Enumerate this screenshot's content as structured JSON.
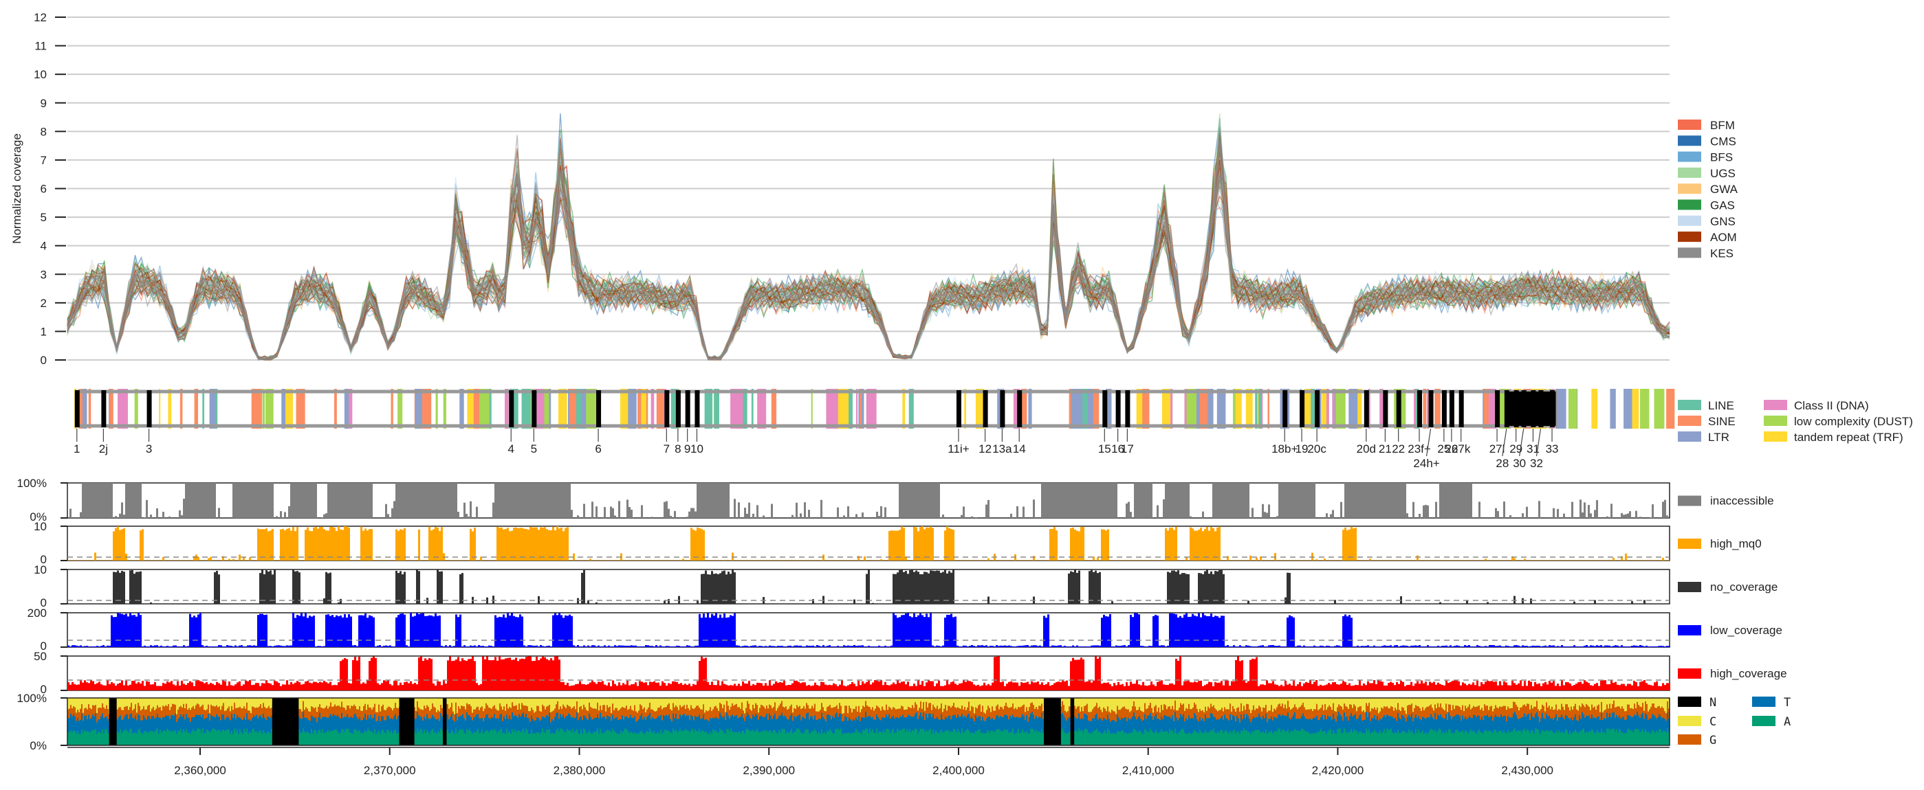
{
  "chart_data": [
    {
      "type": "line",
      "panel": "normalized-coverage",
      "ylabel": "Normalized coverage",
      "ylim": [
        0,
        12
      ],
      "yticks": [
        "0",
        "1",
        "2",
        "3",
        "4",
        "5",
        "6",
        "7",
        "8",
        "9",
        "10",
        "11",
        "12"
      ],
      "grid": true,
      "legend_position": "right",
      "series": [
        {
          "name": "BFM",
          "color": "#f46d4e"
        },
        {
          "name": "CMS",
          "color": "#2c6fb0"
        },
        {
          "name": "BFS",
          "color": "#6aaad6"
        },
        {
          "name": "UGS",
          "color": "#a6d9a0"
        },
        {
          "name": "GWA",
          "color": "#fdc77a"
        },
        {
          "name": "GAS",
          "color": "#2e9a48"
        },
        {
          "name": "GNS",
          "color": "#c6dbef"
        },
        {
          "name": "AOM",
          "color": "#a63603"
        },
        {
          "name": "KES",
          "color": "#8c8c8c"
        }
      ],
      "profile_x": [
        2353000,
        2354000,
        2355000,
        2355500,
        2356500,
        2358000,
        2359000,
        2360000,
        2361000,
        2362000,
        2363000,
        2363500,
        2364000,
        2365000,
        2366000,
        2367000,
        2368000,
        2369000,
        2370000,
        2370700,
        2371000,
        2372000,
        2373000,
        2373500,
        2374500,
        2375500,
        2376000,
        2376600,
        2377200,
        2377800,
        2378400,
        2379000,
        2380000,
        2381000,
        2383000,
        2385000,
        2386000,
        2386700,
        2387500,
        2389000,
        2391000,
        2393000,
        2395000,
        2396000,
        2396500,
        2397500,
        2398500,
        2399500,
        2401000,
        2403000,
        2404000,
        2404600,
        2405000,
        2405600,
        2406200,
        2407000,
        2408000,
        2409000,
        2410200,
        2410800,
        2411600,
        2412000,
        2413000,
        2413800,
        2414500,
        2415000,
        2416000,
        2418000,
        2420000,
        2421000,
        2423000,
        2425000,
        2428000,
        2430000,
        2432000,
        2434000,
        2436000,
        2437000
      ],
      "profile_y": [
        1.2,
        2.6,
        2.8,
        0.1,
        2.9,
        2.5,
        0.6,
        2.6,
        2.5,
        2.4,
        0.0,
        0.0,
        0.0,
        2.2,
        2.6,
        2.2,
        0.3,
        2.4,
        0.3,
        2.0,
        2.5,
        2.2,
        1.6,
        5.2,
        2.2,
        2.8,
        1.8,
        6.8,
        3.4,
        5.5,
        3.0,
        6.6,
        2.8,
        2.3,
        2.4,
        2.1,
        2.3,
        0.0,
        0.0,
        2.3,
        2.2,
        2.5,
        2.4,
        1.2,
        0.1,
        0.0,
        2.0,
        2.3,
        2.2,
        2.6,
        2.4,
        0.1,
        5.4,
        1.2,
        3.4,
        2.3,
        2.5,
        0.0,
        3.0,
        5.2,
        2.1,
        0.4,
        2.8,
        7.2,
        2.3,
        2.5,
        2.2,
        2.4,
        0.2,
        1.9,
        2.3,
        2.4,
        2.3,
        2.5,
        2.4,
        2.3,
        2.5,
        1.0
      ]
    },
    {
      "type": "table",
      "panel": "repeat-annotations",
      "legend_position": "right",
      "classes": [
        {
          "name": "LINE",
          "color": "#66c2a5"
        },
        {
          "name": "SINE",
          "color": "#fc8d62"
        },
        {
          "name": "LTR",
          "color": "#8da0cb"
        },
        {
          "name": "Class II (DNA)",
          "color": "#e78ac3"
        },
        {
          "name": "low complexity (DUST)",
          "color": "#a6d854"
        },
        {
          "name": "tandem repeat (TRF)",
          "color": "#ffd92f"
        }
      ],
      "exon_labels": [
        {
          "label": "1",
          "x": 2353500
        },
        {
          "label": "2j",
          "x": 2354900
        },
        {
          "label": "3",
          "x": 2357300
        },
        {
          "label": "4",
          "x": 2376400
        },
        {
          "label": "5",
          "x": 2377600
        },
        {
          "label": "6",
          "x": 2381000
        },
        {
          "label": "7",
          "x": 2384600
        },
        {
          "label": "8",
          "x": 2385200
        },
        {
          "label": "9",
          "x": 2385700
        },
        {
          "label": "10",
          "x": 2386200
        },
        {
          "label": "11i+",
          "x": 2400000
        },
        {
          "label": "12",
          "x": 2401400
        },
        {
          "label": "13a",
          "x": 2402300
        },
        {
          "label": "14",
          "x": 2403200
        },
        {
          "label": "15",
          "x": 2407700
        },
        {
          "label": "16",
          "x": 2408400
        },
        {
          "label": "17",
          "x": 2408900
        },
        {
          "label": "18b+",
          "x": 2417200
        },
        {
          "label": "19",
          "x": 2418100
        },
        {
          "label": "20c",
          "x": 2418900
        },
        {
          "label": "20d",
          "x": 2421500
        },
        {
          "label": "21",
          "x": 2422500
        },
        {
          "label": "22",
          "x": 2423200
        },
        {
          "label": "23f+",
          "x": 2424300
        },
        {
          "label": "24h+",
          "x": 2424900
        },
        {
          "label": "25",
          "x": 2425600
        },
        {
          "label": "26",
          "x": 2426000
        },
        {
          "label": "27k",
          "x": 2426500
        },
        {
          "label": "27l",
          "x": 2428400
        },
        {
          "label": "28",
          "x": 2428900
        },
        {
          "label": "29",
          "x": 2429400
        },
        {
          "label": "30",
          "x": 2429800
        },
        {
          "label": "31",
          "x": 2430300
        },
        {
          "label": "32",
          "x": 2430700
        },
        {
          "label": "33",
          "x": 2431300
        }
      ]
    },
    {
      "type": "area",
      "panel": "inaccessible",
      "series": [
        {
          "name": "inaccessible",
          "color": "#808080"
        }
      ],
      "ylim": [
        0,
        100
      ],
      "yticks": [
        "0%",
        "100%"
      ],
      "regions": [
        [
          2353700,
          2355300
        ],
        [
          2356000,
          2356900
        ],
        [
          2359200,
          2360800
        ],
        [
          2361700,
          2363800
        ],
        [
          2364700,
          2366100
        ],
        [
          2366600,
          2369100
        ],
        [
          2370200,
          2373500
        ],
        [
          2375500,
          2379500
        ],
        [
          2386100,
          2387900
        ],
        [
          2396800,
          2399000
        ],
        [
          2404300,
          2408300
        ],
        [
          2409200,
          2410200
        ],
        [
          2410800,
          2412100
        ],
        [
          2413300,
          2415300
        ],
        [
          2416800,
          2418800
        ],
        [
          2420300,
          2423600
        ],
        [
          2425300,
          2427000
        ]
      ]
    },
    {
      "type": "area",
      "panel": "high_mq0",
      "series": [
        {
          "name": "high_mq0",
          "color": "#ffa500"
        }
      ],
      "ylim": [
        0,
        10
      ],
      "yticks": [
        "0",
        "10"
      ],
      "threshold": 1,
      "regions": [
        [
          2355300,
          2356000
        ],
        [
          2356800,
          2357000
        ],
        [
          2363000,
          2363800
        ],
        [
          2364200,
          2365100
        ],
        [
          2365500,
          2367800
        ],
        [
          2368400,
          2369100
        ],
        [
          2370200,
          2370800
        ],
        [
          2371400,
          2371600
        ],
        [
          2372000,
          2372800
        ],
        [
          2374200,
          2374500
        ],
        [
          2375600,
          2379400
        ],
        [
          2385800,
          2386600
        ],
        [
          2396300,
          2397100
        ],
        [
          2397500,
          2398600
        ],
        [
          2399200,
          2399700
        ],
        [
          2404700,
          2405200
        ],
        [
          2405800,
          2406600
        ],
        [
          2407400,
          2407900
        ],
        [
          2410800,
          2411500
        ],
        [
          2412100,
          2413800
        ],
        [
          2420200,
          2420900
        ]
      ]
    },
    {
      "type": "area",
      "panel": "no_coverage",
      "series": [
        {
          "name": "no_coverage",
          "color": "#333333"
        }
      ],
      "ylim": [
        0,
        10
      ],
      "yticks": [
        "0",
        "10"
      ],
      "threshold": 1,
      "regions": [
        [
          2355300,
          2356000
        ],
        [
          2356200,
          2356900
        ],
        [
          2360700,
          2361000
        ],
        [
          2363100,
          2363900
        ],
        [
          2364800,
          2365200
        ],
        [
          2366500,
          2366900
        ],
        [
          2370200,
          2370800
        ],
        [
          2371300,
          2371500
        ],
        [
          2372400,
          2372700
        ],
        [
          2373600,
          2373800
        ],
        [
          2380000,
          2380300
        ],
        [
          2386300,
          2388200
        ],
        [
          2395000,
          2395300
        ],
        [
          2396500,
          2399700
        ],
        [
          2405700,
          2406400
        ],
        [
          2406800,
          2407400
        ],
        [
          2410900,
          2412100
        ],
        [
          2412600,
          2414000
        ],
        [
          2417200,
          2417500
        ]
      ]
    },
    {
      "type": "area",
      "panel": "low_coverage",
      "series": [
        {
          "name": "low_coverage",
          "color": "#0000ff"
        }
      ],
      "ylim": [
        0,
        200
      ],
      "yticks": [
        "0",
        "200"
      ],
      "threshold": 40,
      "regions": [
        [
          2355200,
          2356900
        ],
        [
          2359400,
          2360000
        ],
        [
          2363000,
          2363500
        ],
        [
          2364800,
          2366000
        ],
        [
          2366500,
          2368000
        ],
        [
          2368300,
          2369200
        ],
        [
          2370200,
          2370800
        ],
        [
          2371000,
          2372600
        ],
        [
          2373400,
          2373700
        ],
        [
          2375500,
          2377000
        ],
        [
          2378500,
          2379600
        ],
        [
          2386200,
          2388200
        ],
        [
          2396500,
          2398500
        ],
        [
          2399200,
          2399800
        ],
        [
          2404400,
          2404700
        ],
        [
          2407500,
          2408000
        ],
        [
          2409000,
          2409500
        ],
        [
          2410200,
          2410500
        ],
        [
          2411000,
          2414000
        ],
        [
          2417200,
          2417700
        ],
        [
          2420200,
          2420700
        ]
      ]
    },
    {
      "type": "area",
      "panel": "high_coverage",
      "series": [
        {
          "name": "high_coverage",
          "color": "#ff0000"
        }
      ],
      "ylim": [
        0,
        50
      ],
      "yticks": [
        "0",
        "50"
      ],
      "threshold": 15,
      "regions": [
        [
          2367300,
          2367700
        ],
        [
          2368000,
          2368400
        ],
        [
          2368800,
          2369300
        ],
        [
          2371400,
          2372200
        ],
        [
          2373000,
          2374500
        ],
        [
          2374800,
          2379000
        ],
        [
          2386200,
          2386700
        ],
        [
          2401800,
          2402100
        ],
        [
          2405800,
          2406600
        ],
        [
          2407100,
          2407400
        ],
        [
          2411400,
          2411700
        ],
        [
          2414500,
          2415000
        ],
        [
          2415300,
          2415700
        ]
      ]
    },
    {
      "type": "area",
      "panel": "base-composition",
      "ylim": [
        0,
        100
      ],
      "yticks": [
        "0%",
        "100%"
      ],
      "series": [
        {
          "name": "N",
          "color": "#000000"
        },
        {
          "name": "C",
          "color": "#f0e442"
        },
        {
          "name": "G",
          "color": "#d55e00"
        },
        {
          "name": "T",
          "color": "#0072b2"
        },
        {
          "name": "A",
          "color": "#009e73"
        }
      ],
      "n_regions": [
        [
          2355200,
          2355600
        ],
        [
          2363800,
          2365200
        ],
        [
          2370500,
          2371300
        ],
        [
          2372800,
          2373000
        ],
        [
          2404500,
          2405400
        ],
        [
          2405900,
          2406100
        ]
      ]
    }
  ],
  "xaxis": {
    "xlim": [
      2353000,
      2437500
    ],
    "ticks": [
      {
        "value": 2360000,
        "label": "2,360,000"
      },
      {
        "value": 2370000,
        "label": "2,370,000"
      },
      {
        "value": 2380000,
        "label": "2,380,000"
      },
      {
        "value": 2390000,
        "label": "2,390,000"
      },
      {
        "value": 2400000,
        "label": "2,400,000"
      },
      {
        "value": 2410000,
        "label": "2,410,000"
      },
      {
        "value": 2420000,
        "label": "2,420,000"
      },
      {
        "value": 2430000,
        "label": "2,430,000"
      }
    ]
  }
}
